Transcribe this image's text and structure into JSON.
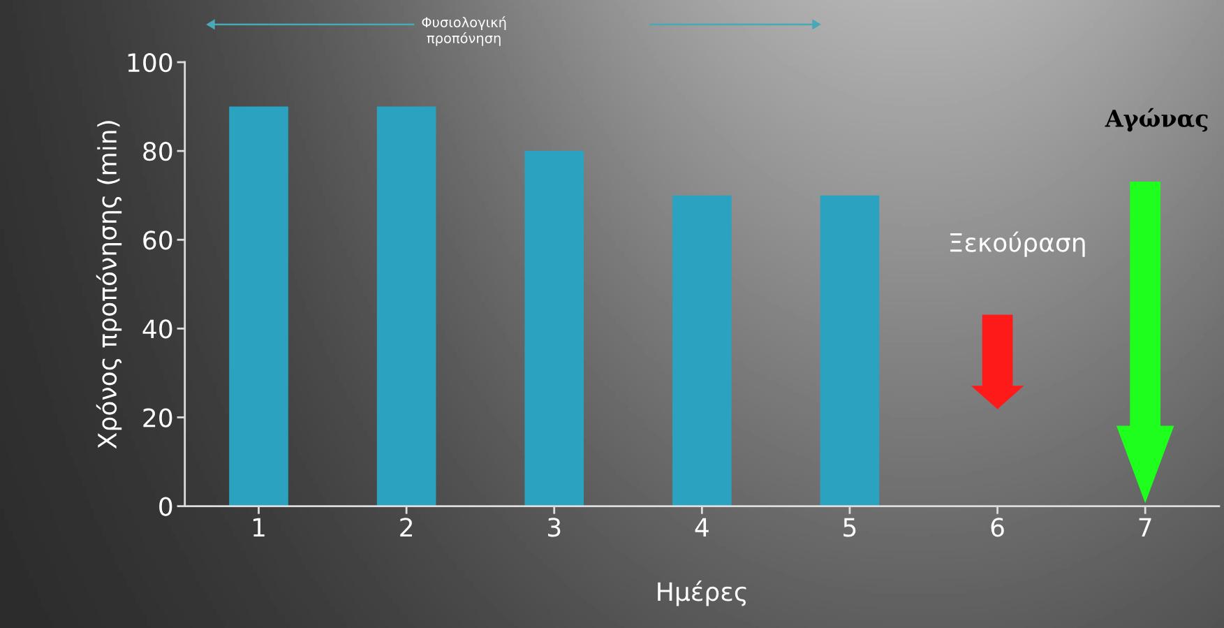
{
  "chart_data": {
    "type": "bar",
    "categories": [
      "1",
      "2",
      "3",
      "4",
      "5",
      "6",
      "7"
    ],
    "values": [
      90,
      90,
      80,
      70,
      70,
      null,
      null
    ],
    "color": "#2ba3c0",
    "ylabel": "Χρόνος προπόνησης (min)",
    "xlabel": "Ημέρες",
    "ylim": [
      0,
      100
    ],
    "yticks": [
      0,
      20,
      40,
      60,
      80,
      100
    ],
    "grid": false,
    "legend": false,
    "annotations": [
      "Φυσιολογική\nπροπόνηση",
      "Ξεκούραση",
      "Αγώνας"
    ]
  }
}
